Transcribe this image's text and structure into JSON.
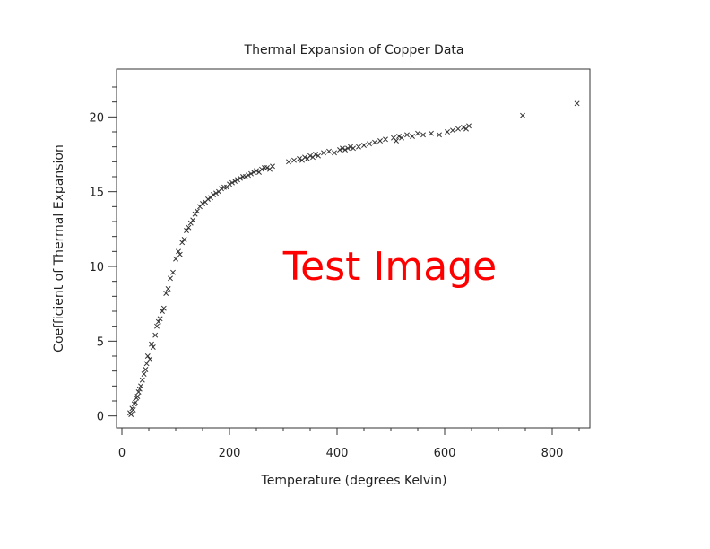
{
  "chart_data": {
    "type": "scatter",
    "title": "Thermal Expansion of Copper Data",
    "xlabel": "Temperature (degrees Kelvin)",
    "ylabel": "Coefficient of Thermal Expansion",
    "xlim": [
      -10,
      870
    ],
    "ylim": [
      -0.8,
      23.2
    ],
    "x_ticks": [
      0,
      200,
      400,
      600,
      800
    ],
    "y_ticks": [
      0,
      5,
      10,
      15,
      20
    ],
    "grid": false,
    "legend": "none",
    "marker": "x",
    "marker_color": "#333333",
    "annotation": "Test Image",
    "annotation_color": "#ff0000",
    "series": [
      {
        "points": [
          [
            15,
            0.2
          ],
          [
            17,
            0.1
          ],
          [
            19,
            0.5
          ],
          [
            21,
            0.4
          ],
          [
            23,
            0.8
          ],
          [
            25,
            0.9
          ],
          [
            27,
            1.2
          ],
          [
            29,
            1.3
          ],
          [
            31,
            1.6
          ],
          [
            33,
            1.8
          ],
          [
            35,
            2.0
          ],
          [
            38,
            2.4
          ],
          [
            41,
            2.8
          ],
          [
            44,
            3.1
          ],
          [
            46,
            3.5
          ],
          [
            48,
            4.0
          ],
          [
            52,
            3.8
          ],
          [
            55,
            4.8
          ],
          [
            58,
            4.6
          ],
          [
            62,
            5.4
          ],
          [
            65,
            6.0
          ],
          [
            68,
            6.3
          ],
          [
            71,
            6.5
          ],
          [
            75,
            7.0
          ],
          [
            78,
            7.2
          ],
          [
            82,
            8.2
          ],
          [
            86,
            8.5
          ],
          [
            90,
            9.2
          ],
          [
            95,
            9.6
          ],
          [
            100,
            10.5
          ],
          [
            105,
            11.0
          ],
          [
            108,
            10.8
          ],
          [
            112,
            11.6
          ],
          [
            116,
            11.8
          ],
          [
            120,
            12.4
          ],
          [
            124,
            12.6
          ],
          [
            128,
            12.9
          ],
          [
            132,
            13.1
          ],
          [
            136,
            13.5
          ],
          [
            140,
            13.7
          ],
          [
            145,
            14.0
          ],
          [
            150,
            14.2
          ],
          [
            155,
            14.3
          ],
          [
            160,
            14.5
          ],
          [
            165,
            14.6
          ],
          [
            170,
            14.8
          ],
          [
            175,
            14.9
          ],
          [
            180,
            15.0
          ],
          [
            185,
            15.2
          ],
          [
            190,
            15.3
          ],
          [
            195,
            15.3
          ],
          [
            200,
            15.5
          ],
          [
            205,
            15.6
          ],
          [
            210,
            15.7
          ],
          [
            215,
            15.8
          ],
          [
            220,
            15.9
          ],
          [
            225,
            16.0
          ],
          [
            230,
            16.0
          ],
          [
            235,
            16.1
          ],
          [
            240,
            16.2
          ],
          [
            245,
            16.3
          ],
          [
            250,
            16.4
          ],
          [
            255,
            16.3
          ],
          [
            260,
            16.5
          ],
          [
            265,
            16.6
          ],
          [
            270,
            16.6
          ],
          [
            275,
            16.5
          ],
          [
            280,
            16.7
          ],
          [
            310,
            17.0
          ],
          [
            320,
            17.1
          ],
          [
            330,
            17.2
          ],
          [
            335,
            17.1
          ],
          [
            340,
            17.3
          ],
          [
            345,
            17.2
          ],
          [
            350,
            17.4
          ],
          [
            355,
            17.3
          ],
          [
            360,
            17.5
          ],
          [
            365,
            17.4
          ],
          [
            375,
            17.6
          ],
          [
            385,
            17.7
          ],
          [
            395,
            17.6
          ],
          [
            405,
            17.8
          ],
          [
            410,
            17.9
          ],
          [
            415,
            17.8
          ],
          [
            420,
            17.9
          ],
          [
            425,
            18.0
          ],
          [
            430,
            17.9
          ],
          [
            440,
            18.0
          ],
          [
            450,
            18.1
          ],
          [
            460,
            18.2
          ],
          [
            470,
            18.3
          ],
          [
            480,
            18.4
          ],
          [
            490,
            18.5
          ],
          [
            505,
            18.6
          ],
          [
            510,
            18.4
          ],
          [
            515,
            18.7
          ],
          [
            520,
            18.6
          ],
          [
            530,
            18.8
          ],
          [
            540,
            18.7
          ],
          [
            550,
            18.9
          ],
          [
            560,
            18.8
          ],
          [
            575,
            18.9
          ],
          [
            590,
            18.8
          ],
          [
            605,
            19.0
          ],
          [
            615,
            19.1
          ],
          [
            625,
            19.2
          ],
          [
            635,
            19.3
          ],
          [
            640,
            19.2
          ],
          [
            645,
            19.4
          ],
          [
            745,
            20.1
          ],
          [
            846,
            20.9
          ]
        ]
      }
    ]
  }
}
